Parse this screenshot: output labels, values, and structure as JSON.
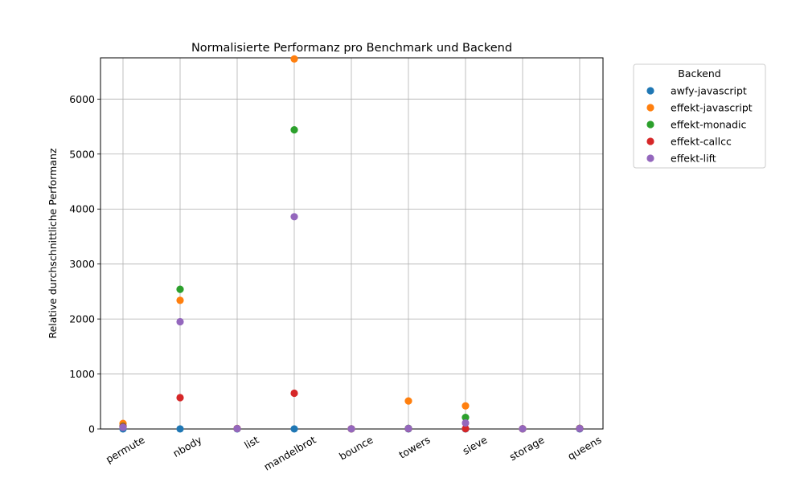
{
  "chart_data": {
    "type": "scatter",
    "title": "Normalisierte Performanz pro Benchmark und Backend",
    "xlabel": "",
    "ylabel": "Relative durchschnittliche Performanz",
    "categories": [
      "permute",
      "nbody",
      "list",
      "mandelbrot",
      "bounce",
      "towers",
      "sieve",
      "storage",
      "queens"
    ],
    "ylim": [
      0,
      6750
    ],
    "yticks": [
      0,
      1000,
      2000,
      3000,
      4000,
      5000,
      6000
    ],
    "grid": true,
    "legend": {
      "title": "Backend",
      "placement": "outside-top-right"
    },
    "series": [
      {
        "name": "awfy-javascript",
        "color": "#1f77b4",
        "values": [
          1,
          1,
          1,
          1,
          1,
          1,
          1,
          1,
          1
        ]
      },
      {
        "name": "effekt-javascript",
        "color": "#ff7f0e",
        "values": [
          100,
          2340,
          10,
          6730,
          3,
          510,
          420,
          4,
          12
        ]
      },
      {
        "name": "effekt-monadic",
        "color": "#2ca02c",
        "values": [
          50,
          2540,
          8,
          5440,
          3,
          12,
          210,
          4,
          12
        ]
      },
      {
        "name": "effekt-callcc",
        "color": "#d62728",
        "values": [
          40,
          570,
          8,
          650,
          3,
          8,
          5,
          4,
          10
        ]
      },
      {
        "name": "effekt-lift",
        "color": "#9467bd",
        "values": [
          30,
          1950,
          8,
          3860,
          3,
          10,
          110,
          4,
          10
        ]
      }
    ]
  }
}
